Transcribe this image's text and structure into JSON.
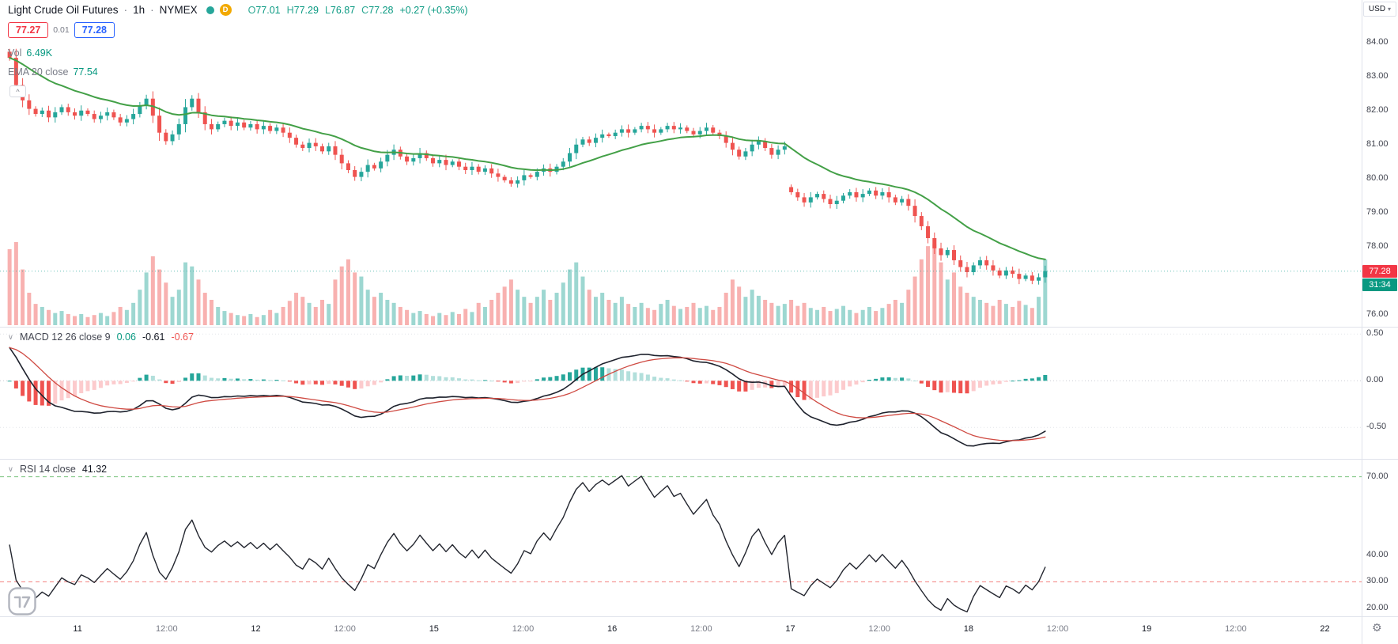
{
  "header": {
    "symbol_title": "Light Crude Oil Futures",
    "interval": "1h",
    "exchange": "NYMEX",
    "separator": "·",
    "data_mode": "D",
    "ohlc": {
      "o_label": "O",
      "o": "77.01",
      "h_label": "H",
      "h": "77.29",
      "l_label": "L",
      "l": "76.87",
      "c_label": "C",
      "c": "77.28",
      "change": "+0.27 (+0.35%)"
    }
  },
  "currency_selector": {
    "label": "USD"
  },
  "order_panel": {
    "sell": "77.27",
    "spread": "0.01",
    "buy": "77.28"
  },
  "overlays": {
    "volume_label": "Vol",
    "volume_value": "6.49K",
    "ema_label": "EMA 20 close",
    "ema_value": "77.54"
  },
  "macd_pane": {
    "label": "MACD 12 26 close 9",
    "hist_value": "0.06",
    "macd_value": "-0.61",
    "signal_value": "-0.67",
    "axis_labels": [
      {
        "text": "0.50",
        "value": 0.5
      },
      {
        "text": "0.00",
        "value": 0.0
      },
      {
        "text": "-0.50",
        "value": -0.5
      }
    ]
  },
  "rsi_pane": {
    "label": "RSI 14 close",
    "value": "41.32",
    "upper_band": 70,
    "lower_band": 30,
    "axis_labels": [
      {
        "text": "70.00",
        "value": 70
      },
      {
        "text": "40.00",
        "value": 40
      },
      {
        "text": "30.00",
        "value": 30
      },
      {
        "text": "20.00",
        "value": 20
      }
    ]
  },
  "price_axis": {
    "labels": [
      {
        "text": "84.00",
        "value": 84
      },
      {
        "text": "83.00",
        "value": 83
      },
      {
        "text": "82.00",
        "value": 82
      },
      {
        "text": "81.00",
        "value": 81
      },
      {
        "text": "80.00",
        "value": 80
      },
      {
        "text": "79.00",
        "value": 79
      },
      {
        "text": "78.00",
        "value": 78
      },
      {
        "text": "76.00",
        "value": 76
      }
    ],
    "last_price": "77.28",
    "countdown": "31:34"
  },
  "time_axis": {
    "labels": [
      {
        "text": "11",
        "type": "day"
      },
      {
        "text": "12:00",
        "type": "hour"
      },
      {
        "text": "12",
        "type": "day"
      },
      {
        "text": "12:00",
        "type": "hour"
      },
      {
        "text": "15",
        "type": "day"
      },
      {
        "text": "12:00",
        "type": "hour"
      },
      {
        "text": "16",
        "type": "day"
      },
      {
        "text": "12:00",
        "type": "hour"
      },
      {
        "text": "17",
        "type": "day"
      },
      {
        "text": "12:00",
        "type": "hour"
      },
      {
        "text": "18",
        "type": "day"
      },
      {
        "text": "12:00",
        "type": "hour"
      },
      {
        "text": "19",
        "type": "day"
      },
      {
        "text": "12:00",
        "type": "hour"
      },
      {
        "text": "22",
        "type": "day"
      }
    ]
  },
  "icons": {
    "chevron_down": "∨",
    "caret_down": "▾",
    "collapse": "^",
    "gear": "⚙"
  },
  "colors": {
    "up": "#26a69a",
    "down": "#ef5350",
    "ema": "#43a047",
    "macd_line": "#1e222d",
    "signal_line": "#cf4a42",
    "rsi_line": "#23262f",
    "hist_pos_weak": "#b2dfdb",
    "hist_neg_weak": "#fccbcd",
    "band_upper": "#4caf50",
    "band_lower": "#ef5350",
    "badge_red": "#f23645",
    "badge_teal": "#089981",
    "buy_blue": "#2962ff",
    "divider": "#e0e3eb"
  },
  "chart_data": {
    "type": "candlestick",
    "title": "Light Crude Oil Futures · 1h · NYMEX",
    "price_range_visible": [
      75.6,
      85.25
    ],
    "gap_index": 120,
    "gap_open": 79.75,
    "closes": [
      83.55,
      82.75,
      82.3,
      82.05,
      81.9,
      82.0,
      81.8,
      81.95,
      82.1,
      81.95,
      81.85,
      82.0,
      81.9,
      81.75,
      81.85,
      81.95,
      81.8,
      81.65,
      81.75,
      81.9,
      82.15,
      82.35,
      81.85,
      81.35,
      81.1,
      81.3,
      81.6,
      82.1,
      82.35,
      81.95,
      81.6,
      81.45,
      81.6,
      81.7,
      81.55,
      81.65,
      81.5,
      81.6,
      81.45,
      81.55,
      81.4,
      81.5,
      81.35,
      81.2,
      81.0,
      80.9,
      81.05,
      80.95,
      80.8,
      80.95,
      80.7,
      80.45,
      80.25,
      80.05,
      80.2,
      80.4,
      80.3,
      80.5,
      80.7,
      80.85,
      80.65,
      80.5,
      80.6,
      80.75,
      80.6,
      80.45,
      80.55,
      80.4,
      80.5,
      80.35,
      80.25,
      80.35,
      80.2,
      80.3,
      80.15,
      80.05,
      79.95,
      79.85,
      79.95,
      80.1,
      80.05,
      80.2,
      80.3,
      80.2,
      80.35,
      80.5,
      80.75,
      81.0,
      81.15,
      81.05,
      81.2,
      81.3,
      81.25,
      81.35,
      81.45,
      81.35,
      81.45,
      81.55,
      81.45,
      81.35,
      81.45,
      81.55,
      81.45,
      81.5,
      81.4,
      81.3,
      81.4,
      81.5,
      81.35,
      81.25,
      81.05,
      80.85,
      80.65,
      80.8,
      81.0,
      81.1,
      80.9,
      80.7,
      80.85,
      80.95,
      79.6,
      79.45,
      79.3,
      79.45,
      79.55,
      79.4,
      79.25,
      79.35,
      79.5,
      79.6,
      79.45,
      79.55,
      79.65,
      79.5,
      79.6,
      79.45,
      79.3,
      79.4,
      79.2,
      78.9,
      78.6,
      78.25,
      77.95,
      77.75,
      77.9,
      77.6,
      77.4,
      77.25,
      77.45,
      77.6,
      77.45,
      77.3,
      77.15,
      77.3,
      77.2,
      77.05,
      77.15,
      77.0,
      77.1,
      77.28
    ],
    "volumes_k": [
      7.5,
      8.2,
      5.5,
      3.2,
      2.1,
      1.8,
      1.5,
      1.2,
      1.4,
      1.1,
      0.9,
      1.1,
      0.8,
      1.0,
      1.2,
      0.9,
      1.3,
      1.8,
      1.5,
      2.2,
      3.5,
      5.2,
      6.8,
      5.5,
      4.2,
      2.8,
      3.5,
      6.2,
      5.8,
      4.5,
      3.2,
      2.5,
      1.8,
      1.4,
      1.2,
      1.0,
      0.9,
      1.1,
      0.8,
      1.0,
      1.5,
      1.2,
      1.8,
      2.4,
      3.2,
      2.8,
      2.2,
      1.8,
      2.5,
      2.1,
      4.5,
      5.8,
      6.5,
      5.2,
      4.8,
      3.5,
      2.8,
      3.2,
      2.5,
      2.2,
      1.8,
      1.5,
      1.2,
      1.4,
      1.1,
      0.9,
      1.2,
      1.0,
      1.3,
      1.1,
      1.6,
      1.3,
      2.2,
      1.8,
      2.5,
      3.2,
      3.8,
      4.5,
      3.5,
      2.8,
      2.2,
      2.8,
      3.5,
      2.5,
      3.2,
      4.2,
      5.5,
      6.2,
      4.8,
      3.5,
      2.8,
      3.2,
      2.5,
      2.2,
      2.8,
      2.1,
      1.8,
      2.2,
      1.7,
      1.5,
      2.1,
      2.5,
      1.9,
      1.6,
      1.8,
      2.2,
      1.7,
      1.9,
      1.5,
      1.8,
      3.2,
      4.5,
      3.8,
      2.8,
      3.5,
      2.9,
      2.5,
      2.2,
      1.9,
      2.1,
      2.5,
      1.9,
      2.2,
      1.7,
      1.5,
      1.8,
      1.4,
      1.6,
      1.9,
      1.5,
      1.2,
      1.5,
      1.8,
      1.4,
      1.7,
      2.1,
      2.5,
      2.2,
      3.5,
      4.8,
      6.5,
      7.8,
      8.0,
      6.2,
      4.5,
      5.2,
      3.8,
      3.2,
      2.8,
      2.5,
      2.2,
      1.9,
      2.5,
      2.1,
      1.8,
      2.4,
      2.0,
      1.7,
      2.8,
      6.49
    ],
    "indicators": {
      "ema": {
        "period": 20
      },
      "macd": {
        "fast": 12,
        "slow": 26,
        "signal": 9
      },
      "rsi": {
        "period": 14
      }
    }
  }
}
